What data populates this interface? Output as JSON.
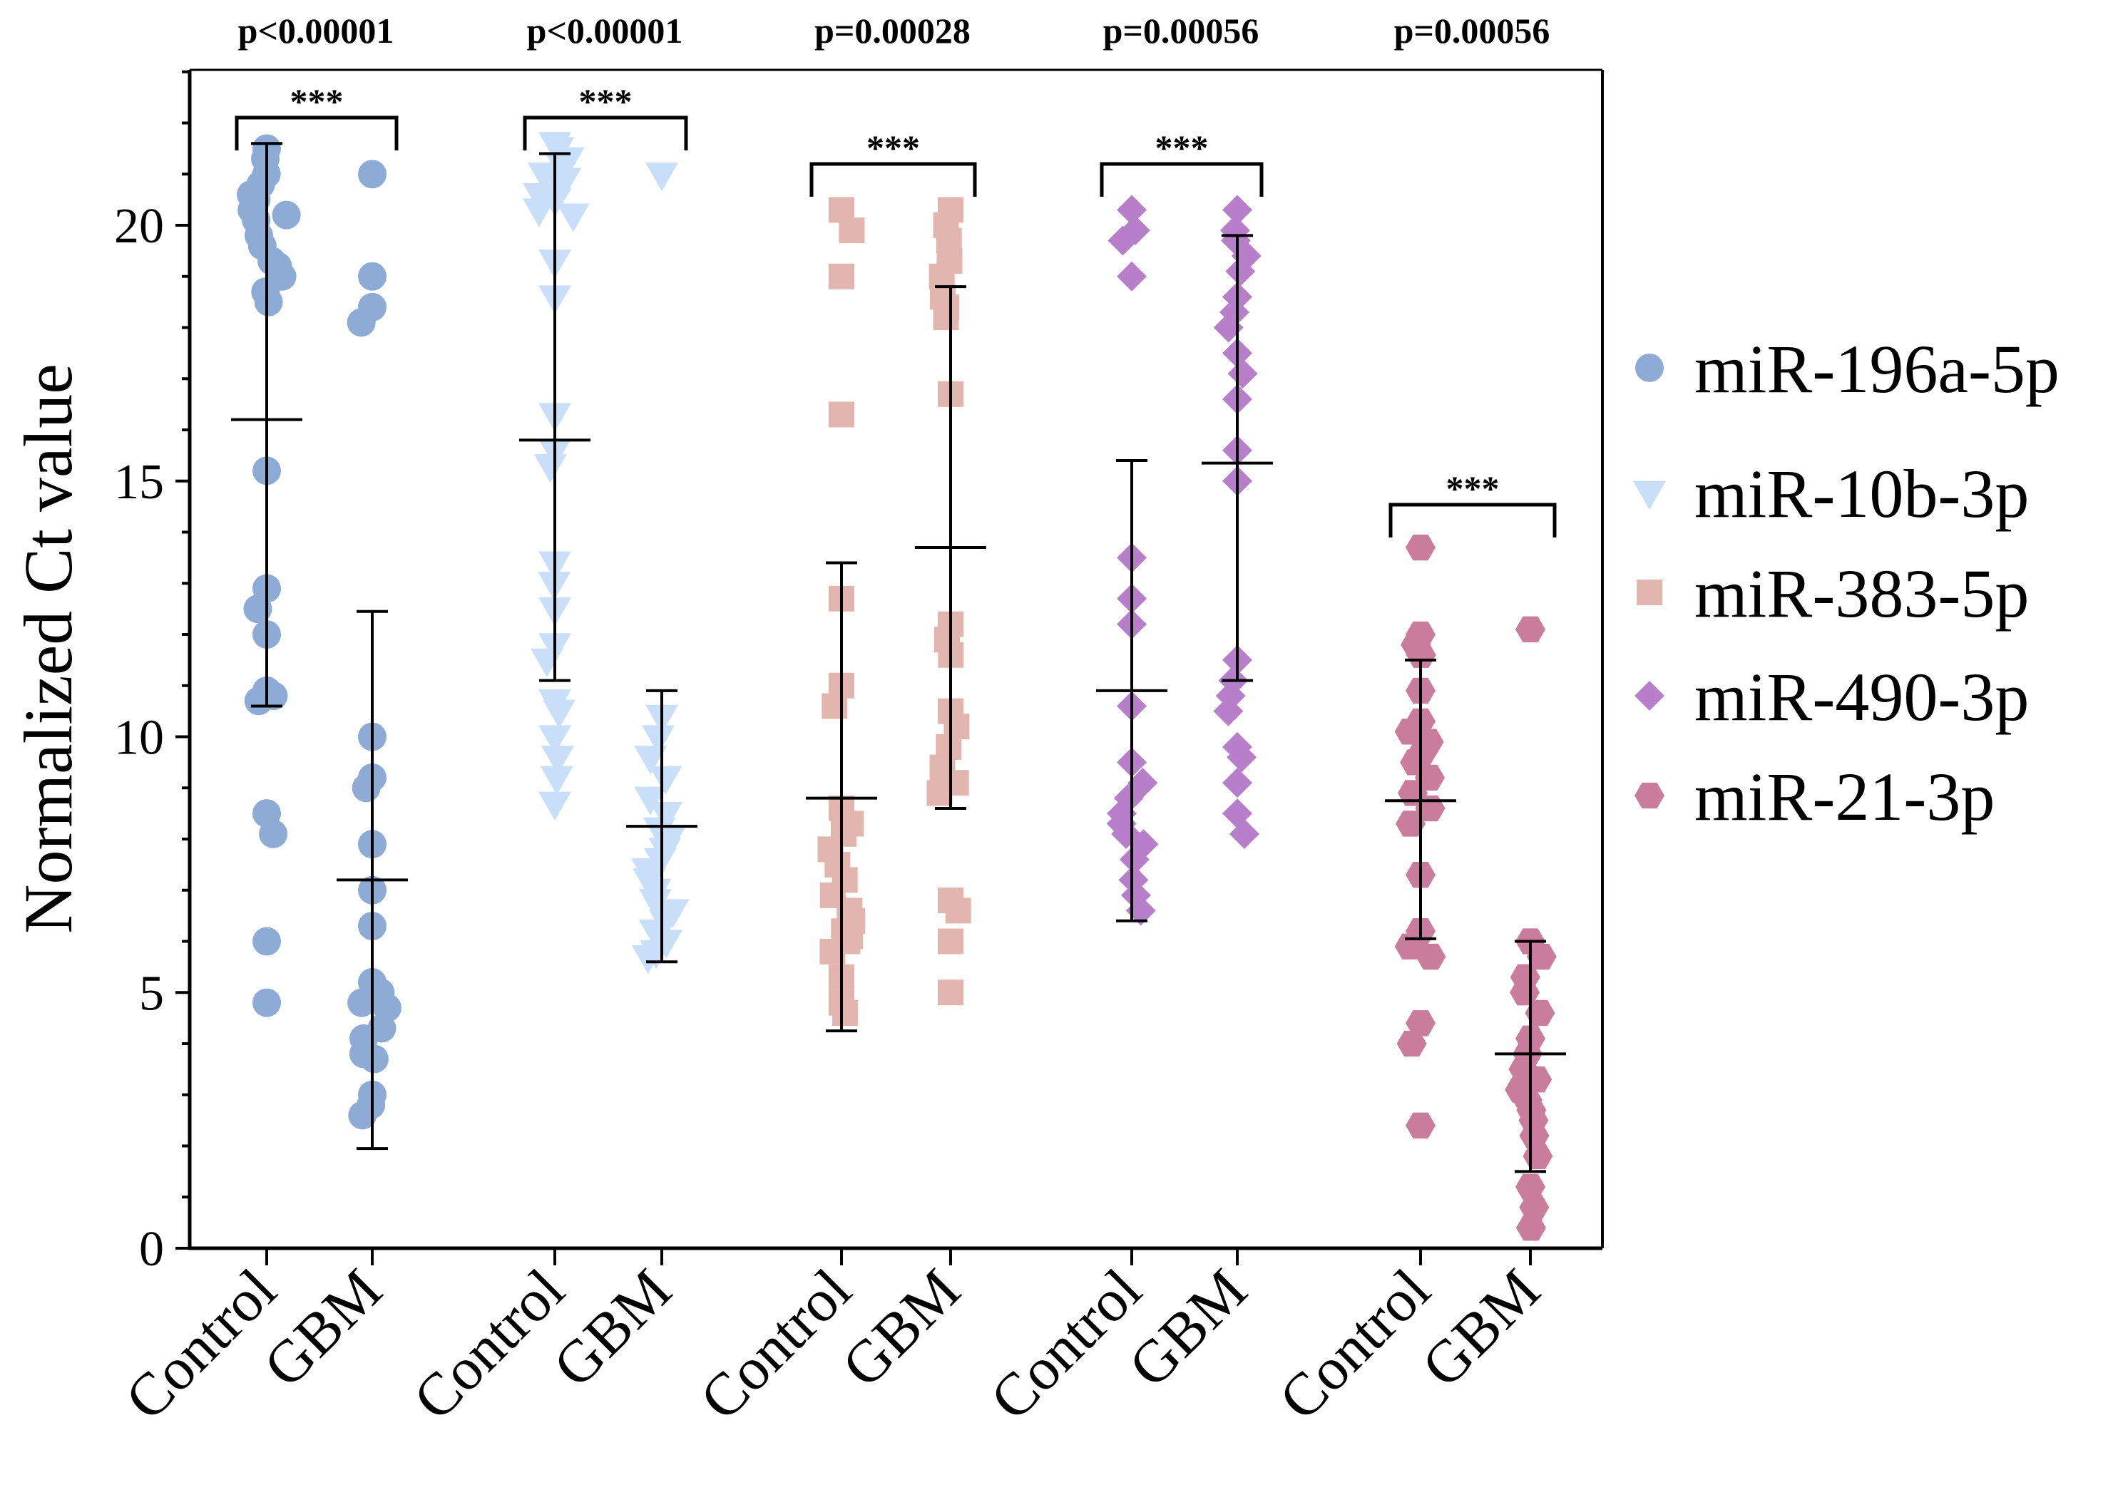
{
  "chart_data": {
    "type": "scatter",
    "title": "",
    "xlabel": "",
    "ylabel": "Normalized Ct value",
    "ylim": [
      0,
      23.4
    ],
    "yticks": [
      0,
      5,
      10,
      15,
      20
    ],
    "grid": false,
    "legend_position": "right",
    "groups": [
      {
        "name": "miR-196a-5p",
        "color": "#8eabd6",
        "marker": "circle",
        "pvalue": "p<0.00001",
        "significance": "***",
        "control": {
          "label": "Control",
          "mean": 16.2,
          "sd_low": 10.6,
          "sd_high": 21.6,
          "points": [
            21.5,
            21.3,
            21.0,
            20.8,
            20.6,
            20.5,
            20.3,
            20.2,
            20.1,
            19.8,
            19.6,
            19.3,
            19.2,
            19.0,
            18.7,
            18.5,
            15.2,
            12.9,
            12.5,
            12.0,
            10.9,
            10.8,
            10.7,
            8.5,
            8.1,
            6.0,
            4.8
          ]
        },
        "gbm": {
          "label": "GBM",
          "mean": 7.2,
          "sd_low": 1.95,
          "sd_high": 12.45,
          "points": [
            21.0,
            19.0,
            18.4,
            18.1,
            10.0,
            9.2,
            9.0,
            7.9,
            7.0,
            6.3,
            5.2,
            5.0,
            4.9,
            4.8,
            4.7,
            4.3,
            4.1,
            3.8,
            3.7,
            3.0,
            2.8,
            2.6
          ]
        }
      },
      {
        "name": "miR-10b-3p",
        "color": "#c9def8",
        "marker": "triangle-down",
        "pvalue": "p<0.00001",
        "significance": "***",
        "control": {
          "label": "Control",
          "mean": 15.8,
          "sd_low": 11.1,
          "sd_high": 21.4,
          "points": [
            21.6,
            21.5,
            21.3,
            21.2,
            21.0,
            20.9,
            20.8,
            20.6,
            20.5,
            20.3,
            20.2,
            19.3,
            18.6,
            16.3,
            15.6,
            15.3,
            13.4,
            13.0,
            12.5,
            11.8,
            11.5,
            10.7,
            10.5,
            10.0,
            9.6,
            9.2,
            8.7
          ]
        },
        "gbm": {
          "label": "GBM",
          "mean": 8.25,
          "sd_low": 5.6,
          "sd_high": 10.9,
          "points": [
            21.0,
            10.4,
            10.0,
            9.6,
            9.2,
            8.8,
            8.5,
            8.2,
            8.0,
            7.8,
            7.6,
            7.4,
            7.2,
            7.0,
            6.8,
            6.6,
            6.4,
            6.2,
            6.0,
            5.8,
            5.7
          ]
        }
      },
      {
        "name": "miR-383-5p",
        "color": "#e3b5af",
        "marker": "square",
        "pvalue": "p=0.00028",
        "significance": "***",
        "control": {
          "label": "Control",
          "mean": 8.8,
          "sd_low": 4.25,
          "sd_high": 13.4,
          "points": [
            20.3,
            19.9,
            19.0,
            16.3,
            12.7,
            11.0,
            10.6,
            8.6,
            8.3,
            8.1,
            7.8,
            7.5,
            7.2,
            6.9,
            6.6,
            6.4,
            6.2,
            6.1,
            6.0,
            5.8,
            5.3,
            4.8,
            4.6
          ]
        },
        "gbm": {
          "label": "GBM",
          "mean": 13.7,
          "sd_low": 8.6,
          "sd_high": 18.8,
          "points": [
            20.3,
            20.0,
            19.7,
            19.3,
            19.0,
            18.6,
            18.4,
            18.2,
            16.7,
            12.2,
            11.9,
            11.6,
            10.5,
            10.2,
            9.8,
            9.4,
            9.1,
            8.9,
            6.8,
            6.6,
            6.0,
            5.0
          ]
        }
      },
      {
        "name": "miR-490-3p",
        "color": "#b77fca",
        "marker": "diamond",
        "pvalue": "p=0.00056",
        "significance": "***",
        "control": {
          "label": "Control",
          "mean": 10.9,
          "sd_low": 6.4,
          "sd_high": 15.4,
          "points": [
            20.3,
            19.9,
            19.7,
            19.0,
            13.5,
            12.7,
            12.2,
            10.6,
            9.5,
            9.1,
            8.8,
            8.5,
            8.3,
            8.1,
            7.9,
            7.6,
            7.2,
            6.9,
            6.6
          ]
        },
        "gbm": {
          "label": "GBM",
          "mean": 15.35,
          "sd_low": 11.1,
          "sd_high": 19.8,
          "points": [
            20.3,
            19.9,
            19.7,
            19.4,
            19.1,
            18.6,
            18.3,
            18.0,
            17.5,
            17.1,
            16.6,
            15.6,
            15.0,
            11.5,
            11.1,
            10.8,
            10.5,
            9.8,
            9.6,
            9.1,
            8.5,
            8.1
          ]
        }
      },
      {
        "name": "miR-21-3p",
        "color": "#ca7c9c",
        "marker": "hexagon",
        "pvalue": "p=0.00056",
        "significance": "***",
        "control": {
          "label": "Control",
          "mean": 8.75,
          "sd_low": 6.05,
          "sd_high": 11.5,
          "points": [
            13.7,
            12.0,
            11.8,
            11.6,
            10.9,
            10.3,
            10.1,
            9.9,
            9.7,
            9.5,
            9.2,
            8.9,
            8.6,
            8.3,
            7.3,
            6.2,
            5.9,
            5.7,
            4.4,
            4.0,
            2.4
          ]
        },
        "gbm": {
          "label": "GBM",
          "mean": 3.8,
          "sd_low": 1.5,
          "sd_high": 6.0,
          "points": [
            12.1,
            6.0,
            5.7,
            5.3,
            5.0,
            4.6,
            4.1,
            3.8,
            3.5,
            3.3,
            3.1,
            2.9,
            2.7,
            2.5,
            2.2,
            1.8,
            1.2,
            0.8,
            0.4
          ]
        }
      }
    ]
  }
}
